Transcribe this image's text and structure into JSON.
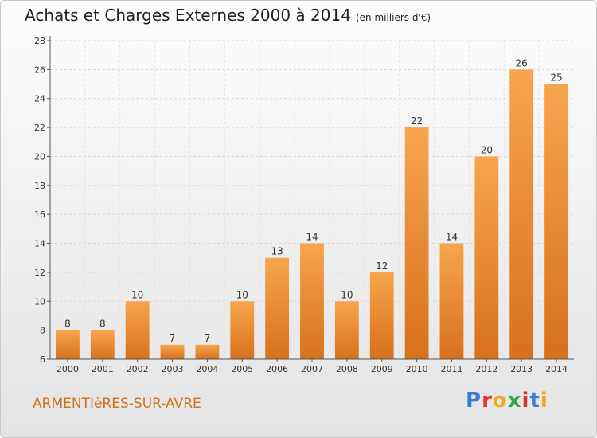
{
  "title": "Achats et Charges Externes 2000 à 2014",
  "unit": "(en milliers d'€)",
  "town": "ARMENTIèRES-SUR-AVRE",
  "logo": {
    "text": "Proxiti",
    "colors": [
      "#3a7bd5",
      "#e0312a",
      "#f2a81d",
      "#2ea84a",
      "#e0312a",
      "#3a7bd5",
      "#f2a81d"
    ]
  },
  "bar_color_light": "#f7a54e",
  "bar_color_dark": "#d8701c",
  "chart_data": {
    "type": "bar",
    "categories": [
      "2000",
      "2001",
      "2002",
      "2003",
      "2004",
      "2005",
      "2006",
      "2007",
      "2008",
      "2009",
      "2010",
      "2011",
      "2012",
      "2013",
      "2014"
    ],
    "values": [
      8,
      8,
      10,
      7,
      7,
      10,
      13,
      14,
      10,
      12,
      22,
      14,
      20,
      26,
      25
    ],
    "ylim": [
      6,
      28
    ],
    "yticks": [
      6,
      8,
      10,
      12,
      14,
      16,
      18,
      20,
      22,
      24,
      26,
      28
    ],
    "grid": true
  }
}
